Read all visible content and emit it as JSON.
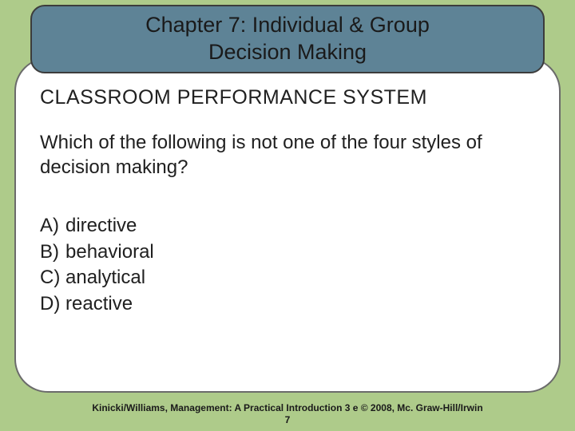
{
  "slide": {
    "background_color": "#aecb8a",
    "card": {
      "background_color": "#ffffff",
      "border_color": "#6b6b6b",
      "border_radius": 42
    },
    "title_banner": {
      "background_color": "#5e8396",
      "border_color": "#3c3c3c",
      "text": "Chapter 7: Individual & Group\nDecision Making",
      "text_color": "#1a1a1a",
      "fontsize": 27
    },
    "section_label": {
      "text": "CLASSROOM PERFORMANCE SYSTEM",
      "fontsize": 25,
      "color": "#202020"
    },
    "question": {
      "text": "Which of the following is not one of the four styles of decision making?",
      "fontsize": 24,
      "color": "#202020"
    },
    "options": [
      {
        "letter": "A)",
        "text": "directive"
      },
      {
        "letter": "B)",
        "text": "behavioral"
      },
      {
        "letter": "C)",
        "text": "analytical"
      },
      {
        "letter": "D)",
        "text": "reactive"
      }
    ],
    "options_style": {
      "fontsize": 24,
      "color": "#202020"
    },
    "footer": {
      "line": "Kinicki/Williams, Management: A Practical Introduction 3 e © 2008, Mc. Graw-Hill/Irwin",
      "page": "7",
      "fontsize": 12,
      "color": "#1a1a1a",
      "font_weight": 700
    }
  }
}
